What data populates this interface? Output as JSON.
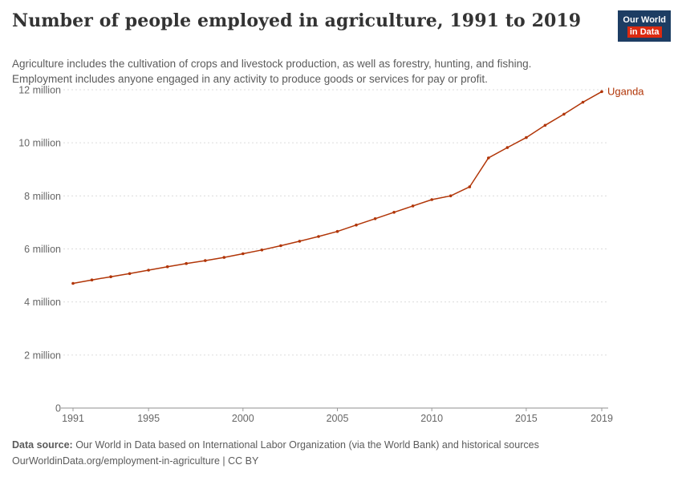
{
  "header": {
    "title": "Number of people employed in agriculture, 1991 to 2019",
    "subtitle_line1": "Agriculture includes the cultivation of crops and livestock production, as well as forestry, hunting, and fishing.",
    "subtitle_line2": "Employment includes anyone engaged in any activity to produce goods or services for pay or profit.",
    "logo": {
      "line1": "Our World",
      "line2": "in Data"
    }
  },
  "colors": {
    "brand_navy": "#1d3d63",
    "brand_red": "#dc2a10",
    "series_red": "#b13507",
    "grid_gray": "#dcdcdc",
    "axis_gray": "#8f8f8f",
    "tick_text_gray": "#666666"
  },
  "chart_data": {
    "type": "line",
    "title": "Number of people employed in agriculture, 1991 to 2019",
    "unit": "people employed",
    "xlabel": "",
    "ylabel": "",
    "grid": "horizontal-dashed",
    "legend": "end-of-line-label",
    "x": [
      1991,
      1992,
      1993,
      1994,
      1995,
      1996,
      1997,
      1998,
      1999,
      2000,
      2001,
      2002,
      2003,
      2004,
      2005,
      2006,
      2007,
      2008,
      2009,
      2010,
      2011,
      2012,
      2013,
      2014,
      2015,
      2016,
      2017,
      2018,
      2019
    ],
    "x_ticks": [
      1991,
      1995,
      2000,
      2005,
      2010,
      2015,
      2019
    ],
    "y_max_millions": 12,
    "y_ticks": [
      {
        "value_millions": 0,
        "label": "0"
      },
      {
        "value_millions": 2,
        "label": "2 million"
      },
      {
        "value_millions": 4,
        "label": "4 million"
      },
      {
        "value_millions": 6,
        "label": "6 million"
      },
      {
        "value_millions": 8,
        "label": "8 million"
      },
      {
        "value_millions": 10,
        "label": "10 million"
      },
      {
        "value_millions": 12,
        "label": "12 million"
      }
    ],
    "series": [
      {
        "name": "Uganda",
        "color": "#b13507",
        "values_millions": [
          4.7,
          4.83,
          4.95,
          5.07,
          5.2,
          5.33,
          5.45,
          5.56,
          5.68,
          5.82,
          5.96,
          6.12,
          6.29,
          6.47,
          6.66,
          6.9,
          7.14,
          7.38,
          7.62,
          7.86,
          8.0,
          8.34,
          9.43,
          9.82,
          10.2,
          10.66,
          11.08,
          11.53,
          11.93
        ]
      }
    ]
  },
  "footer": {
    "datasource_label": "Data source:",
    "datasource_text": " Our World in Data based on International Labor Organization (via the World Bank) and historical sources",
    "url": "OurWorldinData.org/employment-in-agriculture",
    "separator": " | ",
    "license": "CC BY"
  }
}
